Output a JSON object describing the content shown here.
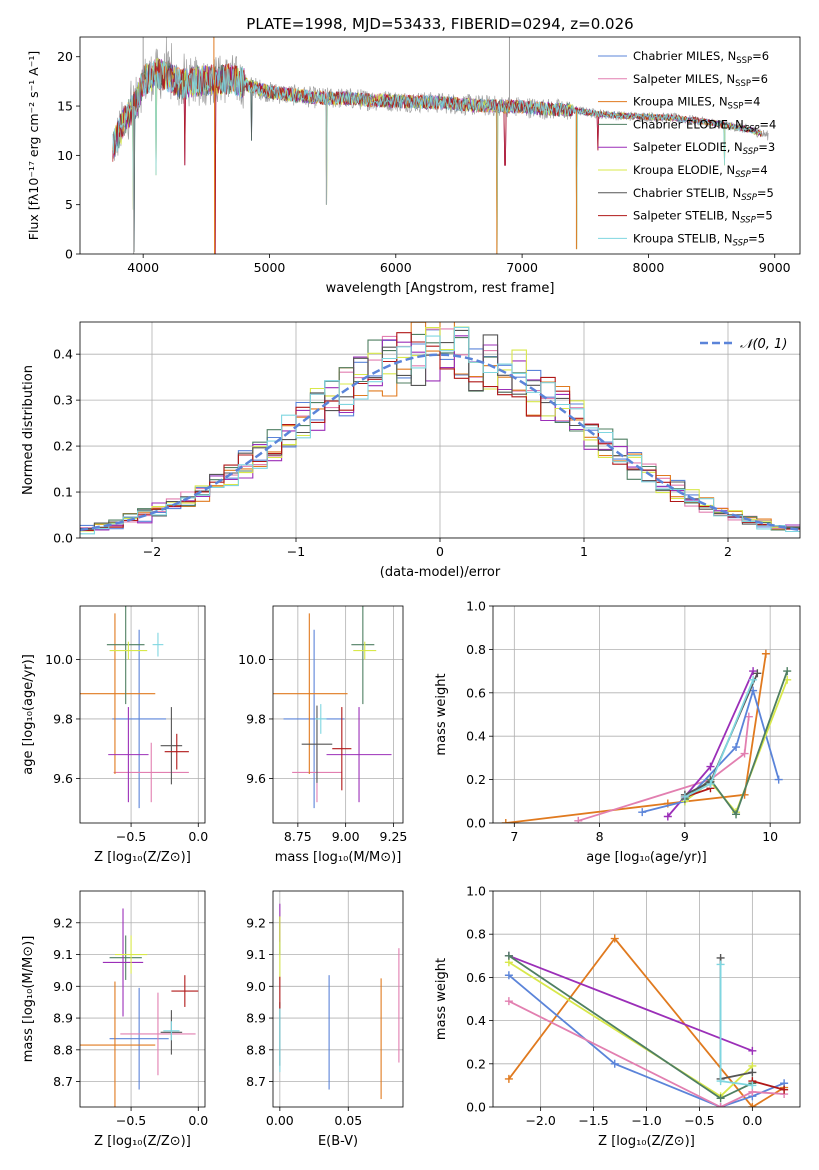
{
  "palette": {
    "Chabrier MILES": "#5b84d9",
    "Salpeter MILES": "#e27fb0",
    "Kroupa MILES": "#e07a1f",
    "Chabrier ELODIE": "#4f7f62",
    "Salpeter ELODIE": "#9b2fb8",
    "Kroupa ELODIE": "#d8e84a",
    "Chabrier STELIB": "#555555",
    "Salpeter STELIB": "#b01818",
    "Kroupa STELIB": "#7fd6e0"
  },
  "chart_data": [
    {
      "id": "spectrum",
      "type": "line",
      "title": "PLATE=1998, MJD=53433, FIBERID=0294, z=0.026",
      "xlabel": "wavelength [Angstrom, rest frame]",
      "ylabel": "Flux [fλ10⁻¹⁷ erg cm⁻² s⁻¹ A⁻¹]",
      "xlim": [
        3500,
        9200
      ],
      "ylim": [
        0,
        22
      ],
      "xticks": [
        4000,
        5000,
        6000,
        7000,
        8000,
        9000
      ],
      "yticks": [
        0,
        5,
        10,
        15,
        20
      ],
      "grid": false,
      "legend": "top-right",
      "series": [
        {
          "name": "Chabrier MILES, N_SSP=6",
          "color": "#5b84d9"
        },
        {
          "name": "Salpeter MILES, N_SSP=6",
          "color": "#e27fb0"
        },
        {
          "name": "Kroupa MILES, N_SSP=4",
          "color": "#e07a1f"
        },
        {
          "name": "Chabrier ELODIE, N_SSP=4",
          "color": "#4f7f62"
        },
        {
          "name": "Salpeter ELODIE, N_SSP=3",
          "color": "#9b2fb8"
        },
        {
          "name": "Kroupa ELODIE, N_SSP=4",
          "color": "#d8e84a"
        },
        {
          "name": "Chabrier STELIB, N_SSP=5",
          "color": "#555555"
        },
        {
          "name": "Salpeter STELIB, N_SSP=5",
          "color": "#b01818"
        },
        {
          "name": "Kroupa STELIB, N_SSP=5",
          "color": "#7fd6e0"
        }
      ],
      "continuum": {
        "x": [
          3750,
          3850,
          3950,
          4000,
          4100,
          4200,
          4300,
          4500,
          4700,
          4850,
          5000,
          5200,
          5400,
          5600,
          5800,
          6000,
          6200,
          6400,
          6600,
          6800,
          7000,
          7200,
          7400,
          7600,
          7800,
          8000,
          8200,
          8400,
          8600,
          8800,
          8950
        ],
        "y": [
          10.5,
          13.5,
          15.5,
          17.5,
          18.3,
          18.0,
          17.2,
          17.6,
          17.8,
          17.0,
          16.4,
          16.1,
          15.8,
          15.8,
          15.6,
          15.5,
          15.4,
          15.3,
          15.1,
          15.0,
          14.9,
          14.7,
          14.6,
          14.2,
          14.0,
          13.9,
          13.8,
          13.5,
          13.1,
          12.6,
          12.0
        ]
      },
      "dips": [
        [
          3920,
          4.5
        ],
        [
          3930,
          0.2
        ],
        [
          4100,
          8.0
        ],
        [
          4330,
          9.0
        ],
        [
          4570,
          0.0
        ],
        [
          4860,
          11.5
        ],
        [
          5450,
          5.0
        ],
        [
          6800,
          0.0
        ],
        [
          6865,
          9.0
        ],
        [
          7430,
          0.5
        ],
        [
          7600,
          10.5
        ],
        [
          8600,
          9.0
        ]
      ]
    },
    {
      "id": "residual-histogram",
      "type": "bar",
      "xlabel": "(data-model)/error",
      "ylabel": "Normed distribution",
      "xlim": [
        -2.5,
        2.5
      ],
      "ylim": [
        0,
        0.47
      ],
      "xticks": [
        -2,
        -1,
        0,
        1,
        2
      ],
      "yticks": [
        0.0,
        0.1,
        0.2,
        0.3,
        0.4
      ],
      "grid": true,
      "legend": "top-right",
      "reference_curve": {
        "name": "𝒩(0, 1)",
        "mean": 0,
        "sigma": 1,
        "color": "#5b84d9"
      }
    },
    {
      "id": "age-vs-Z",
      "type": "scatter",
      "xlabel": "Z [log₁₀(Z/Z⊙)]",
      "ylabel": "age  [log₁₀(age/yr)]",
      "xlim": [
        -0.88,
        0.05
      ],
      "ylim": [
        9.45,
        10.18
      ],
      "xticks": [
        -0.5,
        0.0
      ],
      "yticks": [
        9.6,
        9.8,
        10.0
      ],
      "grid": true,
      "points": [
        {
          "x": -0.44,
          "y": 9.8,
          "dx": 0.2,
          "dy": 0.3,
          "color": "#5b84d9"
        },
        {
          "x": -0.35,
          "y": 9.62,
          "dx": 0.28,
          "dy": 0.1,
          "color": "#e27fb0"
        },
        {
          "x": -0.62,
          "y": 9.885,
          "dx": 0.3,
          "dy": 0.27,
          "color": "#e07a1f"
        },
        {
          "x": -0.54,
          "y": 10.05,
          "dx": 0.14,
          "dy": 0.2,
          "color": "#4f7f62"
        },
        {
          "x": -0.52,
          "y": 9.68,
          "dx": 0.15,
          "dy": 0.16,
          "color": "#9b2fb8"
        },
        {
          "x": -0.52,
          "y": 10.03,
          "dx": 0.14,
          "dy": 0.03,
          "color": "#d8e84a"
        },
        {
          "x": -0.2,
          "y": 9.71,
          "dx": 0.08,
          "dy": 0.13,
          "color": "#555555"
        },
        {
          "x": -0.16,
          "y": 9.69,
          "dx": 0.09,
          "dy": 0.06,
          "color": "#b01818"
        },
        {
          "x": -0.3,
          "y": 10.05,
          "dx": 0.04,
          "dy": 0.04,
          "color": "#7fd6e0"
        }
      ]
    },
    {
      "id": "age-vs-mass",
      "type": "scatter",
      "xlabel": "mass [log₁₀(M/M⊙)]",
      "ylabel": "",
      "xlim": [
        8.62,
        9.3
      ],
      "ylim": [
        9.45,
        10.18
      ],
      "xticks": [
        8.75,
        9.0,
        9.25
      ],
      "yticks": [
        9.6,
        9.8,
        10.0
      ],
      "grid": true,
      "points": [
        {
          "x": 8.835,
          "y": 9.8,
          "dx": 0.16,
          "dy": 0.3,
          "color": "#5b84d9"
        },
        {
          "x": 8.85,
          "y": 9.62,
          "dx": 0.13,
          "dy": 0.1,
          "color": "#e27fb0"
        },
        {
          "x": 8.81,
          "y": 9.885,
          "dx": 0.2,
          "dy": 0.27,
          "color": "#e07a1f"
        },
        {
          "x": 9.09,
          "y": 10.05,
          "dx": 0.06,
          "dy": 0.2,
          "color": "#4f7f62"
        },
        {
          "x": 9.07,
          "y": 9.68,
          "dx": 0.17,
          "dy": 0.16,
          "color": "#9b2fb8"
        },
        {
          "x": 9.1,
          "y": 10.03,
          "dx": 0.06,
          "dy": 0.03,
          "color": "#d8e84a"
        },
        {
          "x": 8.85,
          "y": 9.715,
          "dx": 0.08,
          "dy": 0.13,
          "color": "#555555"
        },
        {
          "x": 8.98,
          "y": 9.7,
          "dx": 0.05,
          "dy": 0.14,
          "color": "#b01818"
        },
        {
          "x": 8.87,
          "y": 9.8,
          "dx": 0.03,
          "dy": 0.05,
          "color": "#7fd6e0"
        }
      ]
    },
    {
      "id": "mass-weight-vs-age",
      "type": "line",
      "xlabel": "age  [log₁₀(age/yr)]",
      "ylabel": "mass weight",
      "xlim": [
        6.75,
        10.35
      ],
      "ylim": [
        0.0,
        1.0
      ],
      "xticks": [
        7,
        8,
        9,
        10
      ],
      "yticks": [
        0.0,
        0.2,
        0.4,
        0.6,
        0.8,
        1.0
      ],
      "grid": true,
      "series": [
        {
          "color": "#e07a1f",
          "x": [
            6.9,
            8.8,
            9.7,
            9.95
          ],
          "y": [
            0.0,
            0.09,
            0.13,
            0.78
          ]
        },
        {
          "color": "#e27fb0",
          "x": [
            7.75,
            9.3,
            9.7,
            9.75
          ],
          "y": [
            0.01,
            0.2,
            0.32,
            0.49
          ]
        },
        {
          "color": "#9b2fb8",
          "x": [
            8.8,
            9.3,
            9.8
          ],
          "y": [
            0.03,
            0.26,
            0.7
          ]
        },
        {
          "color": "#5b84d9",
          "x": [
            8.5,
            9.0,
            9.6,
            9.8,
            10.1
          ],
          "y": [
            0.05,
            0.1,
            0.35,
            0.61,
            0.2
          ]
        },
        {
          "color": "#d8e84a",
          "x": [
            9.0,
            9.3,
            9.6,
            10.2
          ],
          "y": [
            0.1,
            0.19,
            0.05,
            0.66
          ]
        },
        {
          "color": "#4f7f62",
          "x": [
            9.0,
            9.3,
            9.6,
            10.2
          ],
          "y": [
            0.11,
            0.2,
            0.04,
            0.7
          ]
        },
        {
          "color": "#555555",
          "x": [
            9.0,
            9.3,
            9.85
          ],
          "y": [
            0.13,
            0.19,
            0.69
          ]
        },
        {
          "color": "#b01818",
          "x": [
            9.0,
            9.3
          ],
          "y": [
            0.12,
            0.16
          ]
        },
        {
          "color": "#7fd6e0",
          "x": [
            9.0,
            9.3,
            9.8
          ],
          "y": [
            0.12,
            0.18,
            0.66
          ]
        }
      ]
    },
    {
      "id": "mass-vs-Z",
      "type": "scatter",
      "xlabel": "Z [log₁₀(Z/Z⊙)]",
      "ylabel": "mass [log₁₀(M/M⊙)]",
      "xlim": [
        -0.88,
        0.05
      ],
      "ylim": [
        8.62,
        9.3
      ],
      "xticks": [
        -0.5,
        0.0
      ],
      "yticks": [
        8.7,
        8.8,
        8.9,
        9.0,
        9.1,
        9.2
      ],
      "grid": true,
      "points": [
        {
          "x": -0.44,
          "y": 8.835,
          "dx": 0.22,
          "dy": 0.16,
          "color": "#5b84d9"
        },
        {
          "x": -0.3,
          "y": 8.85,
          "dx": 0.28,
          "dy": 0.13,
          "color": "#e27fb0"
        },
        {
          "x": -0.62,
          "y": 8.815,
          "dx": 0.3,
          "dy": 0.2,
          "color": "#e07a1f"
        },
        {
          "x": -0.54,
          "y": 9.09,
          "dx": 0.12,
          "dy": 0.07,
          "color": "#4f7f62"
        },
        {
          "x": -0.56,
          "y": 9.075,
          "dx": 0.15,
          "dy": 0.17,
          "color": "#9b2fb8"
        },
        {
          "x": -0.5,
          "y": 9.1,
          "dx": 0.12,
          "dy": 0.06,
          "color": "#d8e84a"
        },
        {
          "x": -0.2,
          "y": 8.855,
          "dx": 0.08,
          "dy": 0.07,
          "color": "#555555"
        },
        {
          "x": -0.1,
          "y": 8.985,
          "dx": 0.1,
          "dy": 0.05,
          "color": "#b01818"
        },
        {
          "x": -0.2,
          "y": 8.86,
          "dx": 0.06,
          "dy": 0.03,
          "color": "#7fd6e0"
        }
      ]
    },
    {
      "id": "mass-vs-EBV",
      "type": "scatter",
      "xlabel": "E(B-V)",
      "ylabel": "",
      "xlim": [
        -0.005,
        0.09
      ],
      "ylim": [
        8.62,
        9.3
      ],
      "xticks": [
        0.0,
        0.05
      ],
      "yticks": [
        8.7,
        8.8,
        8.9,
        9.0,
        9.1,
        9.2
      ],
      "grid": true,
      "points": [
        {
          "x": 0.036,
          "y": 8.855,
          "dx": 0,
          "dy": 0.18,
          "color": "#5b84d9"
        },
        {
          "x": 0.087,
          "y": 8.94,
          "dx": 0,
          "dy": 0.18,
          "color": "#e27fb0"
        },
        {
          "x": 0.074,
          "y": 8.835,
          "dx": 0,
          "dy": 0.19,
          "color": "#e07a1f"
        },
        {
          "x": 0.0,
          "y": 9.16,
          "dx": 0,
          "dy": 0.06,
          "color": "#4f7f62"
        },
        {
          "x": 0.0,
          "y": 9.2,
          "dx": 0,
          "dy": 0.06,
          "color": "#9b2fb8"
        },
        {
          "x": 0.0,
          "y": 9.12,
          "dx": 0,
          "dy": 0.1,
          "color": "#d8e84a"
        },
        {
          "x": 0.0,
          "y": 8.85,
          "dx": 0,
          "dy": 0.1,
          "color": "#555555"
        },
        {
          "x": 0.0,
          "y": 8.98,
          "dx": 0,
          "dy": 0.05,
          "color": "#b01818"
        },
        {
          "x": 0.0,
          "y": 8.83,
          "dx": 0,
          "dy": 0.1,
          "color": "#7fd6e0"
        }
      ]
    },
    {
      "id": "mass-weight-vs-Z",
      "type": "line",
      "xlabel": "Z [log₁₀(Z/Z⊙)]",
      "ylabel": "mass weight",
      "xlim": [
        -2.45,
        0.45
      ],
      "ylim": [
        0.0,
        1.0
      ],
      "xticks": [
        -2.0,
        -1.5,
        -1.0,
        -0.5,
        0.0
      ],
      "yticks": [
        0.0,
        0.2,
        0.4,
        0.6,
        0.8,
        1.0
      ],
      "grid": true,
      "series": [
        {
          "color": "#e07a1f",
          "x": [
            -2.3,
            -1.3,
            0.0,
            0.3
          ],
          "y": [
            0.13,
            0.78,
            0.0,
            0.09
          ]
        },
        {
          "color": "#5b84d9",
          "x": [
            -2.3,
            -1.3,
            -0.3,
            0.0,
            0.3
          ],
          "y": [
            0.61,
            0.2,
            0.0,
            0.05,
            0.11
          ]
        },
        {
          "color": "#e27fb0",
          "x": [
            -2.3,
            -0.3,
            0.0,
            0.3
          ],
          "y": [
            0.49,
            0.0,
            0.07,
            0.06
          ]
        },
        {
          "color": "#9b2fb8",
          "x": [
            -2.3,
            0.0
          ],
          "y": [
            0.7,
            0.26
          ]
        },
        {
          "color": "#d8e84a",
          "x": [
            -2.3,
            -0.3,
            0.0
          ],
          "y": [
            0.67,
            0.05,
            0.19
          ]
        },
        {
          "color": "#4f7f62",
          "x": [
            -2.3,
            -0.3,
            0.0
          ],
          "y": [
            0.7,
            0.04,
            0.11
          ]
        },
        {
          "color": "#555555",
          "x": [
            -0.3,
            -0.3,
            0.0
          ],
          "y": [
            0.69,
            0.13,
            0.16
          ]
        },
        {
          "color": "#b01818",
          "x": [
            0.0,
            0.3
          ],
          "y": [
            0.12,
            0.08
          ]
        },
        {
          "color": "#7fd6e0",
          "x": [
            -0.3,
            -0.3,
            0.0
          ],
          "y": [
            0.66,
            0.12,
            0.1
          ]
        }
      ]
    }
  ]
}
